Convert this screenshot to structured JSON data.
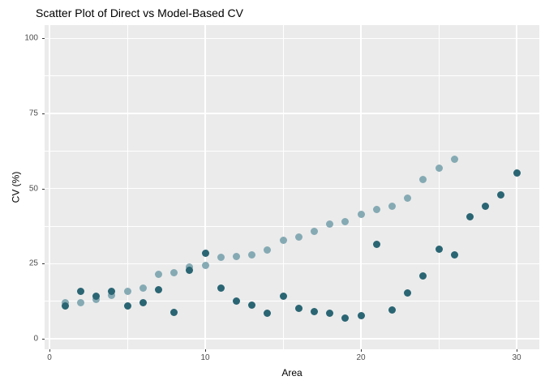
{
  "title": "Scatter Plot of Direct vs Model-Based CV",
  "x_axis": {
    "label": "Area",
    "major_ticks": [
      0,
      10,
      20,
      30
    ],
    "minor_ticks": [
      5,
      15,
      25
    ]
  },
  "y_axis": {
    "label": "CV (%)",
    "major_ticks": [
      0,
      25,
      50,
      75,
      100
    ],
    "minor_ticks": [
      12.5,
      37.5,
      62.5,
      87.5
    ]
  },
  "colors": {
    "direct_point": "#2a6573",
    "model_point": "#85aab4",
    "panel_bg": "#ebebeb",
    "grid": "#ffffff",
    "tick_text": "#4d4d4d",
    "tick_mark": "#333333",
    "title_text": "#000000"
  },
  "chart_data": {
    "type": "scatter",
    "title": "Scatter Plot of Direct vs Model-Based CV",
    "xlabel": "Area",
    "ylabel": "CV (%)",
    "xlim": [
      -0.3,
      31.5
    ],
    "ylim": [
      -3.5,
      104.5
    ],
    "grid": true,
    "legend": false,
    "x": [
      1,
      2,
      3,
      4,
      5,
      6,
      7,
      8,
      9,
      10,
      11,
      12,
      13,
      14,
      15,
      16,
      17,
      18,
      19,
      20,
      21,
      22,
      23,
      24,
      25,
      26,
      27,
      28,
      29,
      30
    ],
    "series": [
      {
        "name": "model_based_cv",
        "color_key": "model_point",
        "values": [
          11.9,
          12.0,
          13.0,
          14.5,
          15.9,
          16.8,
          21.5,
          22.1,
          23.8,
          24.3,
          27.1,
          27.5,
          27.8,
          29.6,
          32.9,
          33.8,
          35.8,
          38.2,
          39.1,
          41.3,
          42.9,
          44.0,
          46.9,
          52.9,
          56.7,
          59.8,
          null,
          null,
          null,
          null
        ]
      },
      {
        "name": "direct_cv",
        "color_key": "direct_point",
        "values": [
          10.8,
          15.8,
          14.2,
          15.9,
          11.0,
          12.0,
          16.3,
          8.8,
          22.9,
          28.5,
          16.8,
          12.6,
          11.2,
          8.5,
          14.1,
          10.0,
          9.0,
          8.4,
          6.8,
          7.6,
          31.3,
          9.6,
          15.3,
          20.8,
          29.9,
          28.0,
          40.6,
          44.1,
          47.8,
          55.2
        ]
      }
    ]
  }
}
